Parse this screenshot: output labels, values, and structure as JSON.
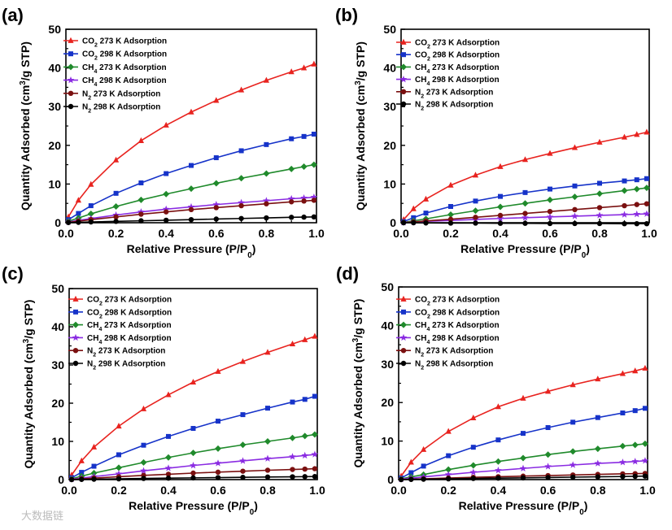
{
  "figure": {
    "xlabel": "Relative Pressure (P/P₀)",
    "ylabel": "Quantity Adsorbed (cm³/g STP)",
    "xticks": [
      "0.0",
      "0.2",
      "0.4",
      "0.6",
      "0.8",
      "1.0"
    ],
    "yticks": [
      "0",
      "10",
      "20",
      "30",
      "40",
      "50"
    ],
    "watermark": "大数据链"
  },
  "chart_data": [
    {
      "type": "line",
      "panel": "(a)",
      "xlabel": "Relative Pressure (P/P₀)",
      "ylabel": "Quantity Adsorbed (cm³/g STP)",
      "xlim": [
        0,
        1.0
      ],
      "ylim": [
        0,
        50
      ],
      "x": [
        0.01,
        0.05,
        0.1,
        0.2,
        0.3,
        0.4,
        0.5,
        0.6,
        0.7,
        0.8,
        0.9,
        0.95,
        0.99
      ],
      "series": [
        {
          "name": "CO₂ 273 K Adsorption",
          "color": "#e8231f",
          "marker": "triangle",
          "values": [
            1.5,
            5.8,
            9.9,
            16.2,
            21.2,
            25.2,
            28.6,
            31.6,
            34.3,
            36.8,
            39.0,
            40.0,
            41.0
          ]
        },
        {
          "name": "CO₂ 298 K Adsorption",
          "color": "#1633c9",
          "marker": "square",
          "values": [
            0.8,
            2.4,
            4.4,
            7.6,
            10.3,
            12.7,
            14.8,
            16.8,
            18.6,
            20.2,
            21.7,
            22.3,
            22.9
          ]
        },
        {
          "name": "CH₄ 273 K Adsorption",
          "color": "#1f8a2b",
          "marker": "diamond",
          "values": [
            0.4,
            1.2,
            2.3,
            4.2,
            5.9,
            7.4,
            8.8,
            10.2,
            11.5,
            12.7,
            13.9,
            14.5,
            15.0
          ]
        },
        {
          "name": "CH₄ 298 K Adsorption",
          "color": "#8a2be2",
          "marker": "star",
          "values": [
            0.2,
            0.6,
            1.1,
            2.0,
            2.8,
            3.5,
            4.1,
            4.7,
            5.2,
            5.7,
            6.2,
            6.4,
            6.6
          ]
        },
        {
          "name": "N₂ 273 K Adsorption",
          "color": "#7a1010",
          "marker": "circle",
          "values": [
            0.1,
            0.4,
            0.8,
            1.5,
            2.2,
            2.8,
            3.4,
            3.9,
            4.4,
            4.9,
            5.4,
            5.6,
            5.8
          ]
        },
        {
          "name": "N₂ 298 K Adsorption",
          "color": "#000000",
          "marker": "circle",
          "values": [
            0.05,
            0.1,
            0.2,
            0.35,
            0.5,
            0.65,
            0.8,
            0.95,
            1.1,
            1.25,
            1.4,
            1.45,
            1.5
          ]
        }
      ]
    },
    {
      "type": "line",
      "panel": "(b)",
      "xlabel": "Relative Pressure (P/P₀)",
      "ylabel": "Quantity Adsorbed (cm³/g STP)",
      "xlim": [
        0,
        1.0
      ],
      "ylim": [
        0,
        50
      ],
      "x": [
        0.01,
        0.05,
        0.1,
        0.2,
        0.3,
        0.4,
        0.5,
        0.6,
        0.7,
        0.8,
        0.9,
        0.95,
        0.99
      ],
      "series": [
        {
          "name": "CO₂ 273 K Adsorption",
          "color": "#e8231f",
          "marker": "triangle",
          "values": [
            0.8,
            3.6,
            6.1,
            9.7,
            12.3,
            14.5,
            16.3,
            17.9,
            19.4,
            20.8,
            22.1,
            22.8,
            23.4
          ]
        },
        {
          "name": "CO₂ 298 K Adsorption",
          "color": "#1633c9",
          "marker": "square",
          "values": [
            0.3,
            1.3,
            2.5,
            4.2,
            5.6,
            6.8,
            7.8,
            8.7,
            9.5,
            10.2,
            10.8,
            11.1,
            11.4
          ]
        },
        {
          "name": "CH₄ 273 K Adsorption",
          "color": "#1f8a2b",
          "marker": "diamond",
          "values": [
            0.1,
            0.5,
            1.0,
            2.1,
            3.1,
            4.1,
            5.0,
            5.9,
            6.7,
            7.5,
            8.3,
            8.7,
            9.0
          ]
        },
        {
          "name": "CH₄ 298 K Adsorption",
          "color": "#8a2be2",
          "marker": "star",
          "values": [
            0.05,
            0.2,
            0.35,
            0.6,
            0.85,
            1.1,
            1.3,
            1.5,
            1.7,
            1.9,
            2.1,
            2.2,
            2.3
          ]
        },
        {
          "name": "N₂ 273 K Adsorption",
          "color": "#7a1010",
          "marker": "circle",
          "values": [
            0.05,
            0.2,
            0.45,
            0.9,
            1.4,
            1.9,
            2.4,
            2.9,
            3.4,
            3.9,
            4.4,
            4.7,
            4.9
          ]
        },
        {
          "name": "N₂ 298 K Adsorption",
          "color": "#000000",
          "marker": "circle",
          "values": [
            0.0,
            0.0,
            -0.05,
            -0.1,
            -0.1,
            -0.15,
            -0.15,
            -0.2,
            -0.2,
            -0.2,
            -0.25,
            -0.25,
            -0.25
          ]
        }
      ]
    },
    {
      "type": "line",
      "panel": "(c)",
      "xlabel": "Relative Pressure (P/P₀)",
      "ylabel": "Quantity Adsorbed (cm³/g STP)",
      "xlim": [
        0,
        1.0
      ],
      "ylim": [
        0,
        50
      ],
      "x": [
        0.01,
        0.05,
        0.1,
        0.2,
        0.3,
        0.4,
        0.5,
        0.6,
        0.7,
        0.8,
        0.9,
        0.95,
        0.99
      ],
      "series": [
        {
          "name": "CO₂ 273 K Adsorption",
          "color": "#e8231f",
          "marker": "triangle",
          "values": [
            1.2,
            4.9,
            8.5,
            14.0,
            18.5,
            22.2,
            25.5,
            28.3,
            30.9,
            33.3,
            35.5,
            36.6,
            37.5
          ]
        },
        {
          "name": "CO₂ 298 K Adsorption",
          "color": "#1633c9",
          "marker": "square",
          "values": [
            0.5,
            1.9,
            3.5,
            6.5,
            9.0,
            11.3,
            13.4,
            15.3,
            17.0,
            18.7,
            20.3,
            21.0,
            21.8
          ]
        },
        {
          "name": "CH₄ 273 K Adsorption",
          "color": "#1f8a2b",
          "marker": "diamond",
          "values": [
            0.2,
            0.9,
            1.7,
            3.1,
            4.5,
            5.8,
            7.0,
            8.1,
            9.1,
            10.0,
            10.9,
            11.4,
            11.8
          ]
        },
        {
          "name": "CH₄ 298 K Adsorption",
          "color": "#8a2be2",
          "marker": "star",
          "values": [
            0.1,
            0.4,
            0.8,
            1.5,
            2.3,
            3.0,
            3.7,
            4.3,
            4.9,
            5.5,
            6.0,
            6.3,
            6.6
          ]
        },
        {
          "name": "N₂ 273 K Adsorption",
          "color": "#7a1010",
          "marker": "circle",
          "values": [
            0.05,
            0.2,
            0.4,
            0.75,
            1.1,
            1.4,
            1.7,
            1.95,
            2.2,
            2.45,
            2.65,
            2.75,
            2.85
          ]
        },
        {
          "name": "N₂ 298 K Adsorption",
          "color": "#000000",
          "marker": "circle",
          "values": [
            0.0,
            0.05,
            0.1,
            0.2,
            0.3,
            0.38,
            0.45,
            0.52,
            0.6,
            0.67,
            0.73,
            0.77,
            0.8
          ]
        }
      ]
    },
    {
      "type": "line",
      "panel": "(d)",
      "xlabel": "Relative Pressure (P/P₀)",
      "ylabel": "Quantity Adsorbed (cm³/g STP)",
      "xlim": [
        0,
        1.0
      ],
      "ylim": [
        0,
        50
      ],
      "x": [
        0.01,
        0.05,
        0.1,
        0.2,
        0.3,
        0.4,
        0.5,
        0.6,
        0.7,
        0.8,
        0.9,
        0.95,
        0.99
      ],
      "series": [
        {
          "name": "CO₂ 273 K Adsorption",
          "color": "#e8231f",
          "marker": "triangle",
          "values": [
            0.9,
            4.5,
            7.8,
            12.5,
            16.0,
            18.9,
            21.1,
            22.9,
            24.6,
            26.1,
            27.5,
            28.2,
            28.9
          ]
        },
        {
          "name": "CO₂ 298 K Adsorption",
          "color": "#1633c9",
          "marker": "square",
          "values": [
            0.4,
            1.8,
            3.5,
            6.2,
            8.4,
            10.3,
            12.0,
            13.5,
            14.9,
            16.1,
            17.3,
            17.9,
            18.5
          ]
        },
        {
          "name": "CH₄ 273 K Adsorption",
          "color": "#1f8a2b",
          "marker": "diamond",
          "values": [
            0.2,
            0.7,
            1.3,
            2.6,
            3.7,
            4.7,
            5.6,
            6.5,
            7.3,
            8.0,
            8.7,
            9.0,
            9.3
          ]
        },
        {
          "name": "CH₄ 298 K Adsorption",
          "color": "#8a2be2",
          "marker": "star",
          "values": [
            0.1,
            0.35,
            0.7,
            1.3,
            1.9,
            2.4,
            2.9,
            3.4,
            3.8,
            4.2,
            4.5,
            4.7,
            4.9
          ]
        },
        {
          "name": "N₂ 273 K Adsorption",
          "color": "#7a1010",
          "marker": "circle",
          "values": [
            0.05,
            0.1,
            0.2,
            0.4,
            0.6,
            0.75,
            0.9,
            1.05,
            1.2,
            1.35,
            1.5,
            1.55,
            1.6
          ]
        },
        {
          "name": "N₂ 298 K Adsorption",
          "color": "#000000",
          "marker": "circle",
          "values": [
            0.0,
            0.05,
            0.1,
            0.2,
            0.3,
            0.38,
            0.45,
            0.55,
            0.63,
            0.72,
            0.8,
            0.85,
            0.9
          ]
        }
      ]
    }
  ]
}
